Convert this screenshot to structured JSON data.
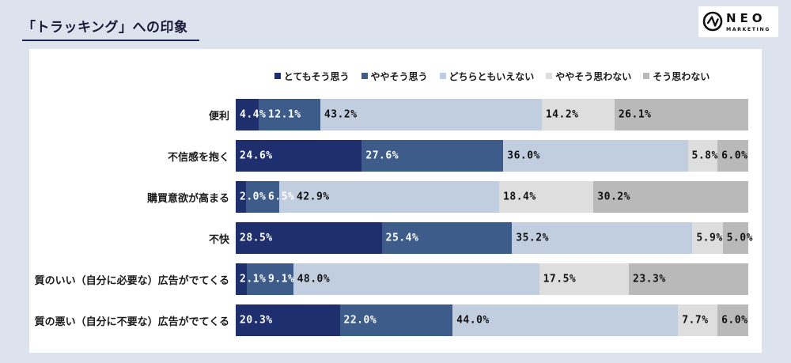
{
  "page": {
    "title": "「トラッキング」への印象"
  },
  "logo": {
    "name": "NEO",
    "sub": "MARKETING",
    "color": "#111111"
  },
  "chart_data": {
    "type": "bar",
    "orientation": "horizontal",
    "stacked": true,
    "unit": "%",
    "xlim": [
      0,
      100
    ],
    "legend_position": "top",
    "grid": false,
    "title": "「トラッキング」への印象",
    "series_names": [
      "とてもそう思う",
      "ややそう思う",
      "どちらともいえない",
      "ややそう思わない",
      "そう思わない"
    ],
    "series_colors": [
      "#1f2e6d",
      "#3e5c8a",
      "#c1cee0",
      "#dedede",
      "#b9b9b9"
    ],
    "label_colors": [
      "#ffffff",
      "#ffffff",
      "#111111",
      "#111111",
      "#111111"
    ],
    "categories": [
      "便利",
      "不信感を抱く",
      "購買意欲が高まる",
      "不快",
      "質のいい（自分に必要な）広告がでてくる",
      "質の悪い（自分に不要な）広告がでてくる"
    ],
    "series": [
      {
        "name": "とてもそう思う",
        "values": [
          4.4,
          24.6,
          2.0,
          28.5,
          2.1,
          20.3
        ]
      },
      {
        "name": "ややそう思う",
        "values": [
          12.1,
          27.6,
          6.5,
          25.4,
          9.1,
          22.0
        ]
      },
      {
        "name": "どちらともいえない",
        "values": [
          43.2,
          36.0,
          42.9,
          35.2,
          48.0,
          44.0
        ]
      },
      {
        "name": "ややそう思わない",
        "values": [
          14.2,
          5.8,
          18.4,
          5.9,
          17.5,
          7.7
        ]
      },
      {
        "name": "そう思わない",
        "values": [
          26.1,
          6.0,
          30.2,
          5.0,
          23.3,
          6.0
        ]
      }
    ]
  },
  "colors": {
    "page_background": "#dde3ed",
    "panel_background": "#ffffff",
    "title_text": "#1a1a38",
    "title_underline": "#1e2450"
  }
}
